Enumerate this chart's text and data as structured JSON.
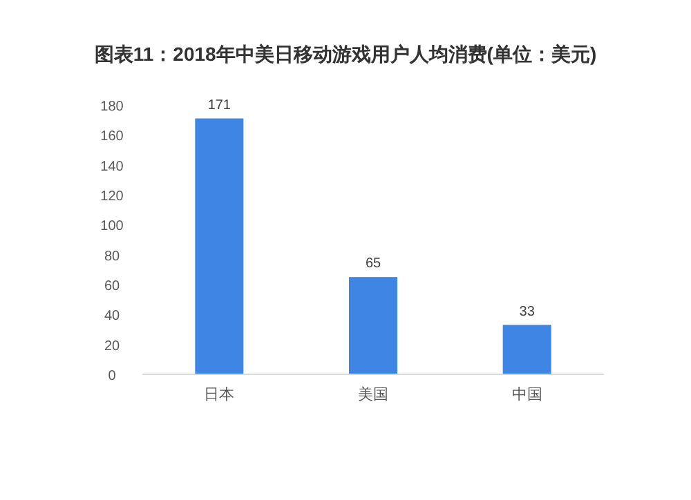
{
  "chart_data": {
    "type": "bar",
    "title": "图表11：2018年中美日移动游戏用户人均消费(单位：美元)",
    "categories": [
      "日本",
      "美国",
      "中国"
    ],
    "values": [
      171,
      65,
      33
    ],
    "color": "#3f86e4",
    "ylim": [
      0,
      180
    ],
    "yticks": [
      0,
      20,
      40,
      60,
      80,
      100,
      120,
      140,
      160,
      180
    ],
    "grid": false,
    "data_labels": true
  }
}
